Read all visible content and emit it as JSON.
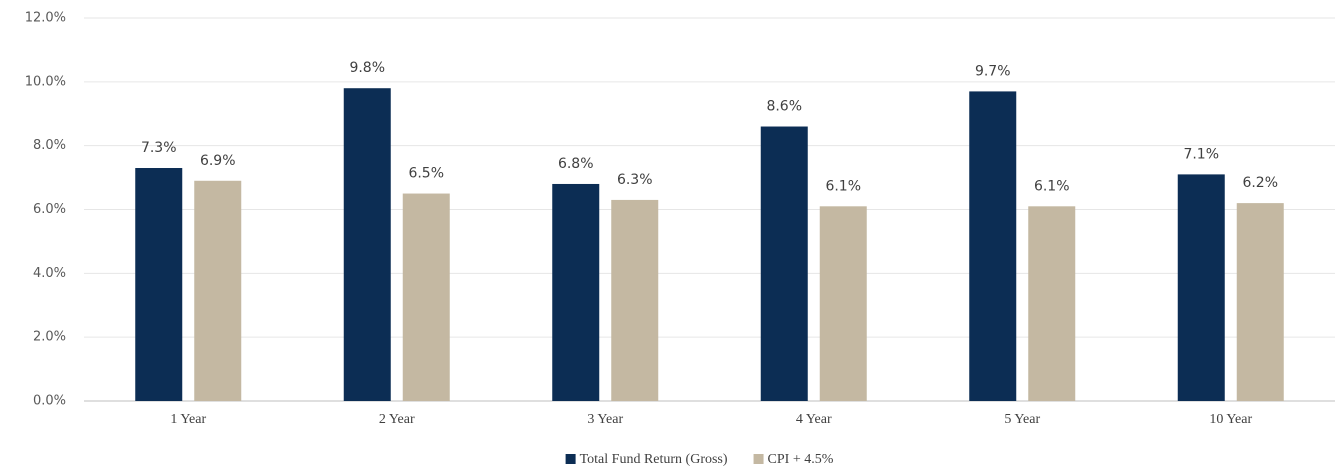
{
  "chart_data": {
    "type": "bar",
    "categories": [
      "1 Year",
      "2 Year",
      "3 Year",
      "4 Year",
      "5 Year",
      "10 Year"
    ],
    "series": [
      {
        "name": "Total Fund Return (Gross)",
        "color": "#0c2d54",
        "values": [
          7.3,
          9.8,
          6.8,
          8.6,
          9.7,
          7.1
        ],
        "value_labels": [
          "7.3%",
          "9.8%",
          "6.8%",
          "8.6%",
          "9.7%",
          "7.1%"
        ]
      },
      {
        "name": "CPI + 4.5%",
        "color": "#c4b8a2",
        "values": [
          6.9,
          6.5,
          6.3,
          6.1,
          6.1,
          6.2
        ],
        "value_labels": [
          "6.9%",
          "6.5%",
          "6.3%",
          "6.1%",
          "6.1%",
          "6.2%"
        ]
      }
    ],
    "ylim": [
      0,
      12
    ],
    "yticks": [
      {
        "value": 0,
        "label": "0.0%"
      },
      {
        "value": 2,
        "label": "2.0%"
      },
      {
        "value": 4,
        "label": "4.0%"
      },
      {
        "value": 6,
        "label": "6.0%"
      },
      {
        "value": 8,
        "label": "8.0%"
      },
      {
        "value": 10,
        "label": "10.0%"
      },
      {
        "value": 12,
        "label": "12.0%"
      }
    ],
    "grid": true,
    "legend": "bottom"
  }
}
